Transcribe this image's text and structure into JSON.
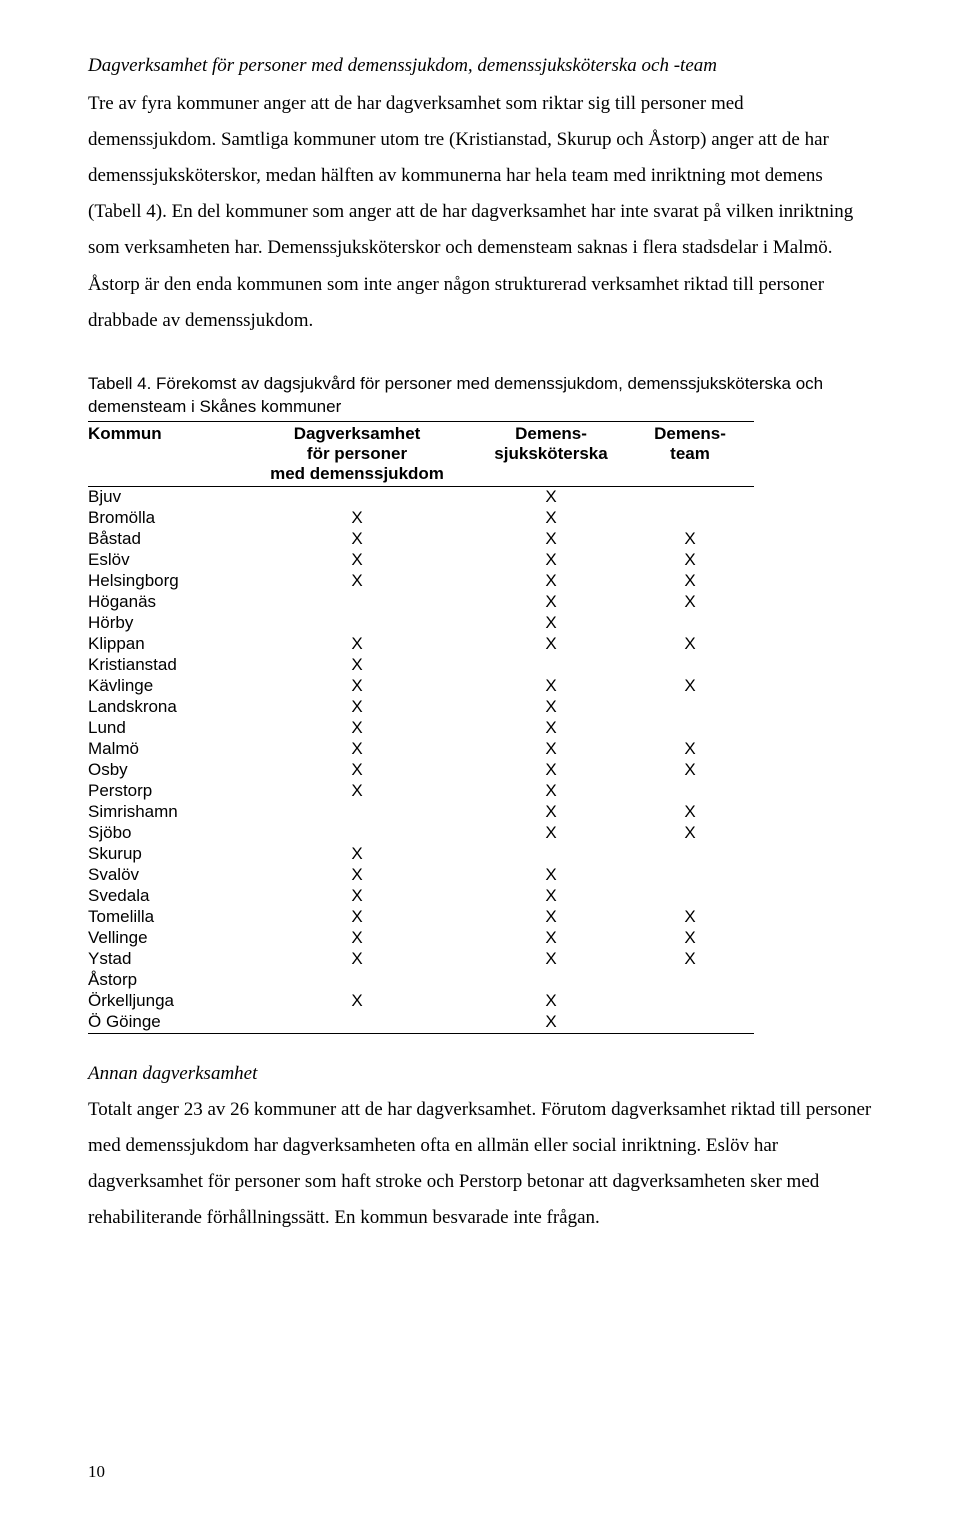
{
  "section_title": "Dagverksamhet för personer med demenssjukdom, demenssjuksköterska och -team",
  "para1": "Tre av fyra kommuner anger att de har dagverksamhet som riktar sig till personer med demenssjukdom. Samtliga kommuner utom tre (Kristianstad, Skurup och Åstorp) anger att de har demenssjuksköterskor, medan hälften av kommunerna har hela team med inriktning mot demens (Tabell 4). En del kommuner som anger att de har dagverksamhet har inte svarat på vilken inriktning som verksamheten har. Demenssjuksköterskor och demensteam saknas i flera stadsdelar i Malmö. Åstorp är den enda kommunen som inte anger någon strukturerad verksamhet riktad till personer drabbade av demenssjukdom.",
  "table": {
    "caption": "Tabell 4. Förekomst av dagsjukvård för personer med demenssjukdom, demenssjuksköterska och demensteam i Skånes kommuner",
    "headers": {
      "kommun": "Kommun",
      "col_a_l1": "Dagverksamhet",
      "col_a_l2": "för personer",
      "col_a_l3": "med demenssjukdom",
      "col_b_l1": "Demens-",
      "col_b_l2": "sjuksköterska",
      "col_c_l1": "Demens-",
      "col_c_l2": "team"
    },
    "rows": [
      {
        "k": "Bjuv",
        "a": "",
        "b": "X",
        "c": ""
      },
      {
        "k": "Bromölla",
        "a": "X",
        "b": "X",
        "c": ""
      },
      {
        "k": "Båstad",
        "a": "X",
        "b": "X",
        "c": "X"
      },
      {
        "k": "Eslöv",
        "a": "X",
        "b": "X",
        "c": "X"
      },
      {
        "k": "Helsingborg",
        "a": "X",
        "b": "X",
        "c": "X"
      },
      {
        "k": "Höganäs",
        "a": "",
        "b": "X",
        "c": "X"
      },
      {
        "k": "Hörby",
        "a": "",
        "b": "X",
        "c": ""
      },
      {
        "k": "Klippan",
        "a": "X",
        "b": "X",
        "c": "X"
      },
      {
        "k": "Kristianstad",
        "a": "X",
        "b": "",
        "c": ""
      },
      {
        "k": "Kävlinge",
        "a": "X",
        "b": "X",
        "c": "X"
      },
      {
        "k": "Landskrona",
        "a": "X",
        "b": "X",
        "c": ""
      },
      {
        "k": "Lund",
        "a": "X",
        "b": "X",
        "c": ""
      },
      {
        "k": "Malmö",
        "a": "X",
        "b": "X",
        "c": "X"
      },
      {
        "k": "Osby",
        "a": "X",
        "b": "X",
        "c": "X"
      },
      {
        "k": "Perstorp",
        "a": "X",
        "b": "X",
        "c": ""
      },
      {
        "k": "Simrishamn",
        "a": "",
        "b": "X",
        "c": "X"
      },
      {
        "k": "Sjöbo",
        "a": "",
        "b": "X",
        "c": "X"
      },
      {
        "k": "Skurup",
        "a": "X",
        "b": "",
        "c": ""
      },
      {
        "k": "Svalöv",
        "a": "X",
        "b": "X",
        "c": ""
      },
      {
        "k": "Svedala",
        "a": "X",
        "b": "X",
        "c": ""
      },
      {
        "k": "Tomelilla",
        "a": "X",
        "b": "X",
        "c": "X"
      },
      {
        "k": "Vellinge",
        "a": "X",
        "b": "X",
        "c": "X"
      },
      {
        "k": "Ystad",
        "a": "X",
        "b": "X",
        "c": "X"
      },
      {
        "k": "Åstorp",
        "a": "",
        "b": "",
        "c": ""
      },
      {
        "k": "Örkelljunga",
        "a": "X",
        "b": "X",
        "c": ""
      },
      {
        "k": "Ö Göinge",
        "a": "",
        "b": "X",
        "c": ""
      }
    ]
  },
  "subhead2": "Annan dagverksamhet",
  "para2": "Totalt anger 23 av 26 kommuner att de har dagverksamhet. Förutom dagverksamhet riktad till personer med demenssjukdom har dagverksamheten ofta en allmän eller social inriktning. Eslöv har dagverksamhet för personer som haft stroke och Perstorp betonar att dagverksamheten sker med rehabiliterande förhållningssätt. En kommun besvarade inte frågan.",
  "page_number": "10"
}
